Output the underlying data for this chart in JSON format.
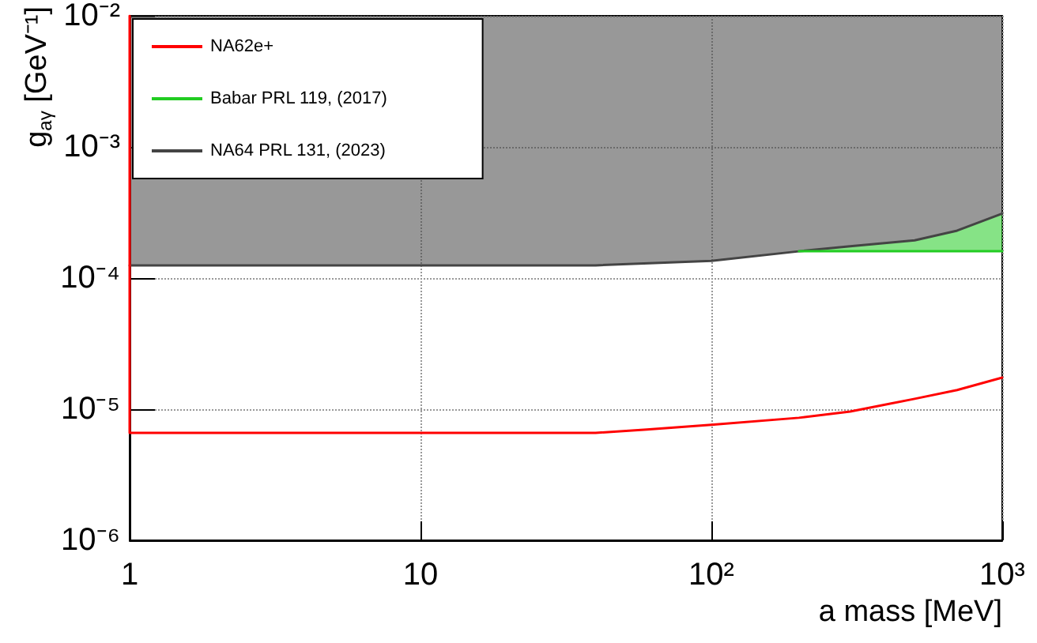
{
  "chart_data": {
    "type": "line",
    "xlabel": "a mass [MeV]",
    "ylabel": "g$_{aγ}$ [GeV⁻¹]",
    "log": "xy",
    "xlim": [
      1,
      1000
    ],
    "xticks": [
      1,
      10,
      {
        "value": 100,
        "label": "10²"
      },
      {
        "value": 1000,
        "label": "10³"
      }
    ],
    "ylim": [
      1e-06,
      0.01
    ],
    "yticks": [
      {
        "value": 1e-06,
        "label": "10⁻⁶"
      },
      {
        "value": 1e-05,
        "label": "10⁻⁵"
      },
      {
        "value": 0.0001,
        "label": "10⁻⁴"
      },
      {
        "value": 0.001,
        "label": "10⁻³"
      },
      {
        "value": 0.01,
        "label": "10⁻²"
      }
    ],
    "grid": true,
    "legend": "top left",
    "marker": "none",
    "series": [
      {
        "name": "NA62e+",
        "color": "#ff0000",
        "x": [
          1,
          1,
          40,
          60,
          100,
          200,
          300,
          500,
          700,
          1000
        ],
        "values": [
          0.01,
          6.6e-06,
          6.6e-06,
          7e-06,
          7.6e-06,
          8.6e-06,
          9.6e-06,
          1.2e-05,
          1.4e-05,
          1.74e-05
        ]
      },
      {
        "name": "Babar PRL 119, (2017)",
        "color": "#22cc22",
        "x": [
          200,
          300,
          500,
          700,
          1000
        ],
        "values": [
          0.00016,
          0.00016,
          0.00016,
          0.00016,
          0.00016
        ],
        "lower": [
          0.00016,
          0.00016,
          0.00016,
          0.00016,
          0.00016
        ],
        "upper": [
          0.00016,
          0.000175,
          0.000194,
          0.00023,
          0.00031
        ]
      },
      {
        "name": "NA64 PRL 131, (2023)",
        "color": "#444444",
        "x": [
          1,
          10,
          40,
          100,
          200,
          300,
          500,
          700,
          1000
        ],
        "values": [
          0.000125,
          0.000125,
          0.000125,
          0.000135,
          0.00016,
          0.000175,
          0.000194,
          0.00023,
          0.00031
        ],
        "lower": [
          0.000125,
          0.000125,
          0.000125,
          0.000135,
          0.00016,
          0.000175,
          0.000194,
          0.00023,
          0.00031
        ],
        "upper": [
          0.01,
          0.01,
          0.01,
          0.01,
          0.01,
          0.01,
          0.01,
          0.01,
          0.01
        ]
      }
    ]
  }
}
